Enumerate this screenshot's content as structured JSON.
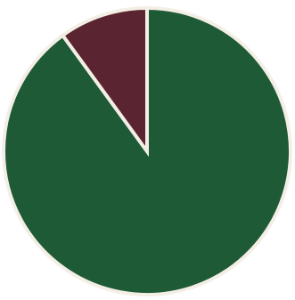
{
  "chart_data": {
    "type": "pie",
    "title": "",
    "labels": [
      "",
      ""
    ],
    "values": [
      90,
      10
    ],
    "colors": [
      "#1f5a37",
      "#5a2530"
    ],
    "start_angle_deg": 0,
    "direction": "clockwise",
    "legend": "none"
  }
}
